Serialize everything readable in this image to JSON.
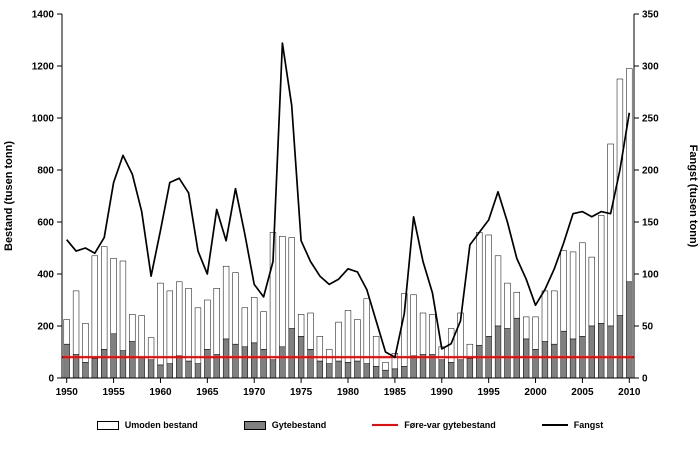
{
  "chart_data": {
    "type": "bar",
    "title": "",
    "ylabel_left": "Bestand (tusen tonn)",
    "ylabel_right": "Fangst (tusen tonn)",
    "ylim_left": [
      0,
      1400
    ],
    "ylim_right": [
      0,
      350
    ],
    "ytick_step_left": 200,
    "ytick_step_right": 50,
    "grid": false,
    "legend_position": "bottom",
    "x_ticks": [
      1950,
      1955,
      1960,
      1965,
      1970,
      1975,
      1980,
      1985,
      1990,
      1995,
      2000,
      2005,
      2010
    ],
    "years": [
      1950,
      1951,
      1952,
      1953,
      1954,
      1955,
      1956,
      1957,
      1958,
      1959,
      1960,
      1961,
      1962,
      1963,
      1964,
      1965,
      1966,
      1967,
      1968,
      1969,
      1970,
      1971,
      1972,
      1973,
      1974,
      1975,
      1976,
      1977,
      1978,
      1979,
      1980,
      1981,
      1982,
      1983,
      1984,
      1985,
      1986,
      1987,
      1988,
      1989,
      1990,
      1991,
      1992,
      1993,
      1994,
      1995,
      1996,
      1997,
      1998,
      1999,
      2000,
      2001,
      2002,
      2003,
      2004,
      2005,
      2006,
      2007,
      2008,
      2009,
      2010
    ],
    "series": [
      {
        "name": "Umoden bestand",
        "type": "bar-stacked-top",
        "axis": "left",
        "color": "#ffffff",
        "swatch": "rect",
        "values": [
          95,
          245,
          150,
          395,
          395,
          290,
          345,
          105,
          160,
          85,
          315,
          280,
          285,
          280,
          215,
          190,
          255,
          280,
          275,
          150,
          175,
          145,
          490,
          425,
          350,
          85,
          140,
          95,
          55,
          150,
          200,
          160,
          250,
          115,
          30,
          60,
          280,
          235,
          160,
          155,
          50,
          130,
          180,
          55,
          435,
          390,
          270,
          175,
          100,
          85,
          125,
          195,
          205,
          310,
          335,
          360,
          265,
          415,
          700,
          910,
          820
        ]
      },
      {
        "name": "Gytebestand",
        "type": "bar-stacked-bottom",
        "axis": "left",
        "color": "#808080",
        "swatch": "rect",
        "values": [
          130,
          90,
          60,
          75,
          110,
          170,
          105,
          140,
          80,
          70,
          50,
          55,
          85,
          65,
          55,
          110,
          90,
          150,
          130,
          120,
          135,
          110,
          70,
          120,
          190,
          160,
          110,
          65,
          55,
          65,
          60,
          65,
          55,
          45,
          30,
          35,
          45,
          85,
          90,
          90,
          70,
          60,
          70,
          75,
          125,
          160,
          200,
          190,
          230,
          150,
          110,
          140,
          130,
          180,
          150,
          160,
          200,
          210,
          200,
          240,
          370
        ]
      },
      {
        "name": "Føre-var gytebestand",
        "type": "hline",
        "axis": "left",
        "color": "#ff0000",
        "swatch": "line",
        "value": 80
      },
      {
        "name": "Fangst",
        "type": "line",
        "axis": "right",
        "color": "#000000",
        "swatch": "line",
        "values": [
          133,
          122,
          125,
          120,
          135,
          188,
          214,
          196,
          160,
          98,
          142,
          188,
          192,
          178,
          122,
          100,
          162,
          132,
          182,
          138,
          90,
          78,
          112,
          322,
          262,
          132,
          112,
          98,
          90,
          95,
          105,
          102,
          85,
          55,
          25,
          20,
          62,
          155,
          112,
          82,
          28,
          33,
          55,
          128,
          140,
          152,
          179,
          150,
          115,
          95,
          70,
          85,
          105,
          130,
          158,
          160,
          155,
          160,
          158,
          200,
          255
        ]
      }
    ]
  }
}
